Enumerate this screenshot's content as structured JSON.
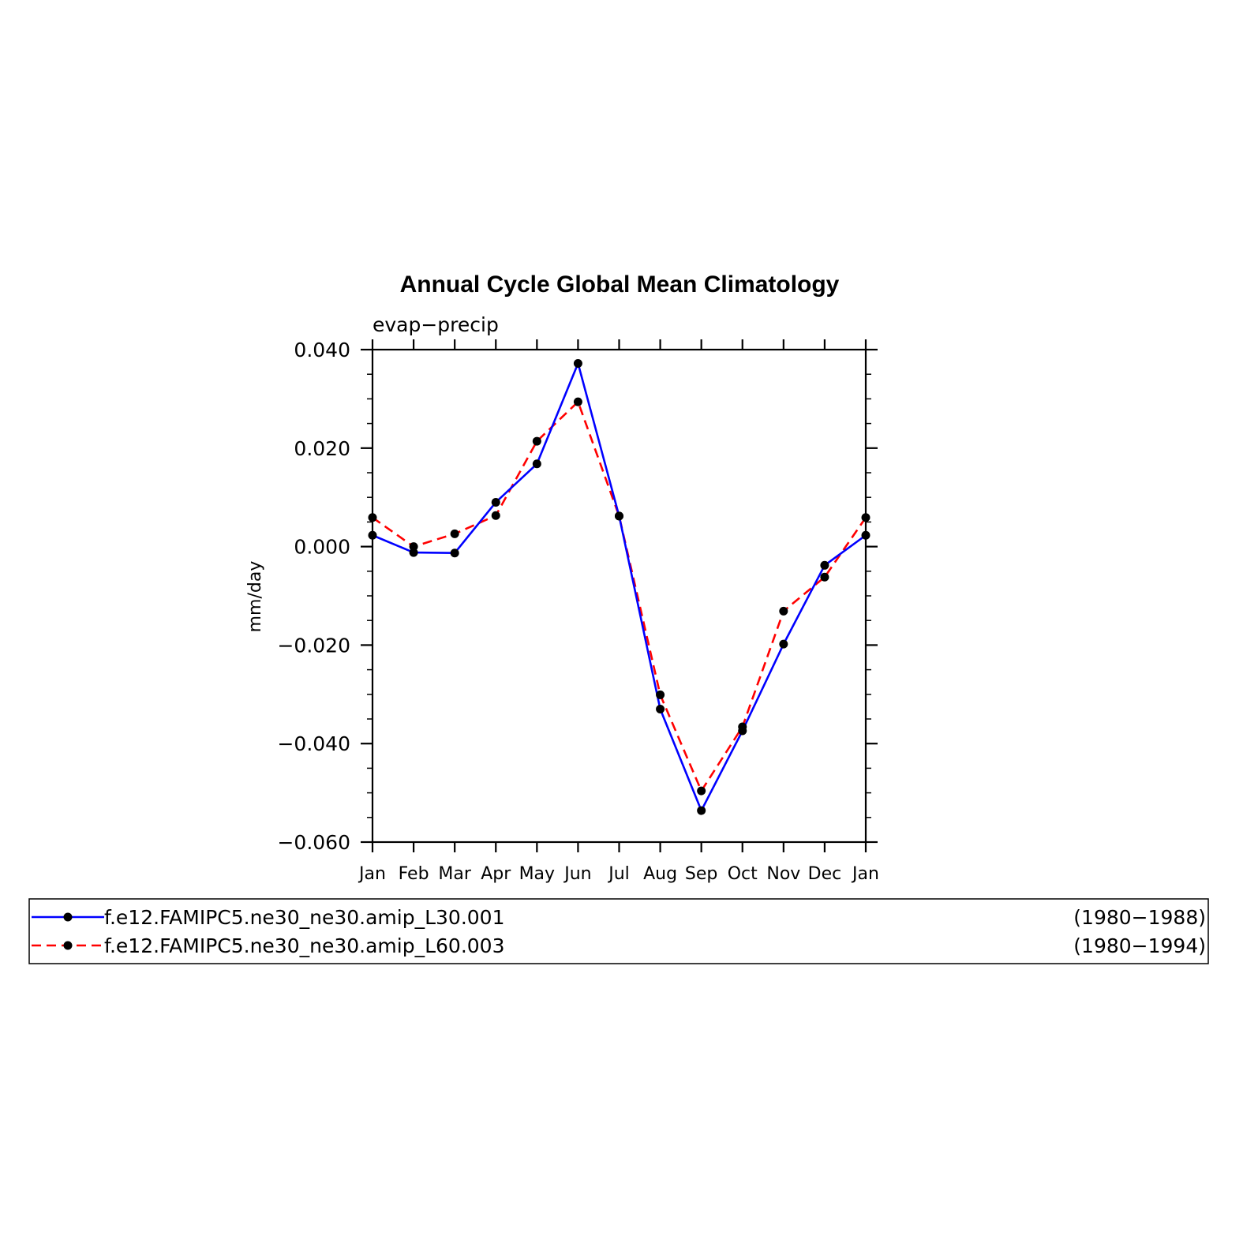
{
  "chart_data": {
    "type": "line",
    "title": "Annual Cycle Global Mean Climatology",
    "subtitle": "evap−precip",
    "xlabel": "",
    "ylabel": "mm/day",
    "categories": [
      "Jan",
      "Feb",
      "Mar",
      "Apr",
      "May",
      "Jun",
      "Jul",
      "Aug",
      "Sep",
      "Oct",
      "Nov",
      "Dec",
      "Jan"
    ],
    "ylim": [
      -0.06,
      0.04
    ],
    "yticks": [
      0.04,
      0.02,
      0.0,
      -0.02,
      -0.04,
      -0.06
    ],
    "ytick_labels": [
      "0.040",
      "0.020",
      "0.000",
      "−0.020",
      "−0.040",
      "−0.060"
    ],
    "grid": false,
    "legend_position": "bottom",
    "series": [
      {
        "name": "f.e12.FAMIPC5.ne30_ne30.amip_L30.001",
        "period": "(1980−1988)",
        "color": "#0000ff",
        "dashed": false,
        "values": [
          0.0023,
          -0.0012,
          -0.0013,
          0.009,
          0.0168,
          0.0372,
          0.0062,
          -0.033,
          -0.0536,
          -0.0374,
          -0.0198,
          -0.0038,
          0.0023
        ]
      },
      {
        "name": "f.e12.FAMIPC5.ne30_ne30.amip_L60.003",
        "period": "(1980−1994)",
        "color": "#ff0000",
        "dashed": true,
        "values": [
          0.0059,
          0.0,
          0.0026,
          0.0063,
          0.0214,
          0.0294,
          0.0062,
          -0.0301,
          -0.0496,
          -0.0366,
          -0.0131,
          -0.0062,
          0.0059
        ]
      }
    ]
  }
}
